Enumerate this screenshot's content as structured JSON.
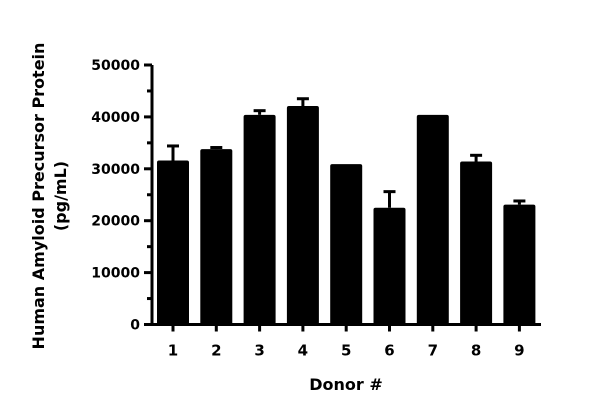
{
  "chart_data": {
    "type": "bar",
    "title": "",
    "xlabel": "Donor #",
    "ylabel_lines": [
      "Human Amyloid Precursor Protein",
      "(pg/mL)"
    ],
    "categories": [
      "1",
      "2",
      "3",
      "4",
      "5",
      "6",
      "7",
      "8",
      "9"
    ],
    "values": [
      31600,
      33800,
      40400,
      42100,
      30900,
      22500,
      40400,
      31400,
      23100
    ],
    "error_upper": [
      34400,
      34100,
      41200,
      43500,
      30900,
      25600,
      40400,
      32600,
      23800
    ],
    "ylim": [
      0,
      50000
    ],
    "yticks": [
      0,
      10000,
      20000,
      30000,
      40000,
      50000
    ],
    "ytick_labels": [
      "0",
      "10000",
      "20000",
      "30000",
      "40000",
      "50000"
    ],
    "grid": false,
    "bar_color": "#000000"
  }
}
